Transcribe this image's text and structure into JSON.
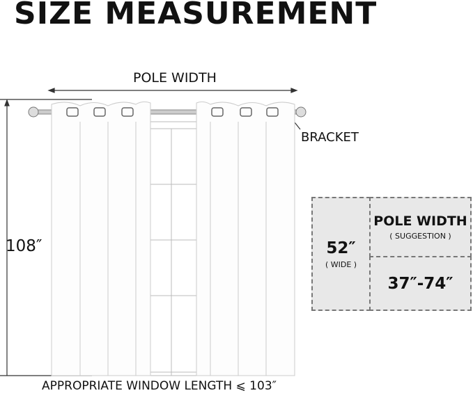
{
  "title": "SIZE MEASUREMENT",
  "pole_width_label": "POLE WIDTH",
  "bracket_label": "BRACKET",
  "height_label": "108″",
  "bottom_label": "APPROPRIATE WINDOW LENGTH ⩽ 103″",
  "info_box": {
    "width_value": "52″",
    "width_note": "( WIDE )",
    "pole_title": "POLE WIDTH",
    "pole_note": "( SUGGESTION )",
    "pole_range": "37″-74″"
  },
  "colors": {
    "box_fill": "#e8e8e8",
    "border": "#777777"
  }
}
